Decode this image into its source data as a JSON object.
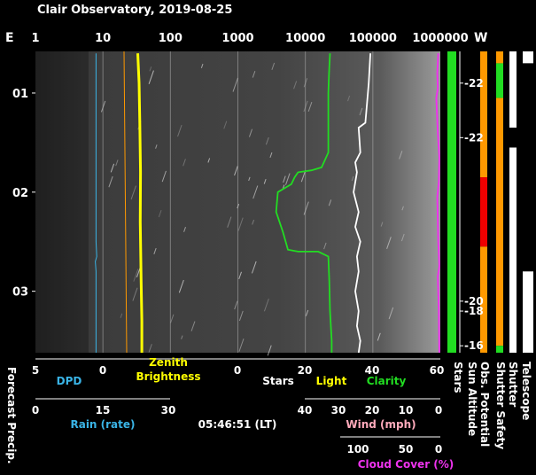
{
  "title": "Clair Observatory, 2019-08-25",
  "time_readout": "05:46:51 (LT)",
  "colors": {
    "dpd": "#3ab4e6",
    "rain": "#3ab4e6",
    "zenith": "#ffff00",
    "stars": "#ffffff",
    "light": "#ffff00",
    "clarity": "#22dd22",
    "wind": "#ffaabb",
    "cloud": "#ee33ee",
    "forecast": "#ffffff"
  },
  "chart_data": {
    "type": "line",
    "top_axis": {
      "left_label": "E",
      "right_label": "W",
      "scale": "log",
      "ticks": [
        "1",
        "10",
        "100",
        "1000",
        "10000",
        "100000",
        "1000000"
      ]
    },
    "y_axis": {
      "ticks": [
        "01",
        "02",
        "03"
      ],
      "hours": [
        1,
        2,
        3
      ],
      "range_hours": [
        0.58,
        3.62
      ]
    },
    "bottom_axes": {
      "dpd": {
        "label": "DPD",
        "ticks": [
          "5",
          "0"
        ]
      },
      "zenith_brightness": {
        "label_line1": "Zenith",
        "label_line2": "Brightness",
        "ticks": [
          "0",
          "20",
          "40",
          "60"
        ]
      },
      "stars_light_clarity": {
        "labels": [
          "Stars",
          "Light",
          "Clarity"
        ]
      },
      "rain": {
        "label": "Rain (rate)",
        "ticks": [
          "0",
          "15",
          "30"
        ]
      },
      "wind": {
        "label": "Wind (mph)",
        "ticks": [
          "40",
          "30",
          "20",
          "10",
          "0"
        ]
      },
      "cloud_cover": {
        "label": "Cloud Cover (%)",
        "ticks": [
          "100",
          "50",
          "0"
        ]
      }
    },
    "side_labels": {
      "left": "Forecast Precip.",
      "columns": [
        "Stars",
        "Sun Altitude",
        "Obs. Potential",
        "Shutter Safety",
        "Shutter",
        "Telescope"
      ]
    },
    "sun_altitude": {
      "labels": [
        "-22",
        "-22",
        "-20",
        "-18",
        "-16"
      ],
      "hours": [
        0.9,
        1.45,
        3.1,
        3.2,
        3.55
      ]
    },
    "series": [
      {
        "key": "dpd",
        "x": [
          0.5,
          0.5,
          0.5,
          0.45,
          0.55,
          0.5,
          0.5,
          0.5
        ],
        "hours": [
          0.6,
          1.5,
          2.5,
          2.65,
          2.7,
          2.8,
          3.3,
          3.62
        ]
      },
      {
        "key": "zenith",
        "x": [
          26.0,
          27.0,
          27.5,
          28.0,
          27.8,
          28.5,
          29.0,
          29.0
        ],
        "hours": [
          0.6,
          0.9,
          1.3,
          1.8,
          2.3,
          2.9,
          3.3,
          3.62
        ]
      },
      {
        "key": "clarity",
        "x": [
          27.5,
          27.2,
          27.0,
          27.0,
          25.0,
          22.0,
          18.0,
          17.0,
          16.0,
          12.0,
          11.5,
          13.5,
          15.0,
          18.0,
          24.0,
          27.0,
          27.3,
          27.5,
          28.0,
          28.0
        ],
        "hours": [
          0.6,
          0.8,
          1.0,
          1.6,
          1.75,
          1.78,
          1.8,
          1.85,
          1.92,
          2.0,
          2.2,
          2.4,
          2.58,
          2.6,
          2.6,
          2.65,
          2.9,
          3.2,
          3.5,
          3.62
        ]
      },
      {
        "key": "stars",
        "x": [
          39.5,
          39.0,
          38.5,
          38.0,
          36.0,
          36.5,
          35.0,
          35.5,
          34.5,
          36.0,
          35.0,
          36.5,
          35.5,
          36.0,
          35.0,
          36.0,
          35.5,
          36.5,
          36.0
        ],
        "hours": [
          0.6,
          0.9,
          1.1,
          1.3,
          1.35,
          1.6,
          1.7,
          1.8,
          2.0,
          2.2,
          2.35,
          2.5,
          2.65,
          2.8,
          3.0,
          3.2,
          3.35,
          3.5,
          3.62
        ]
      },
      {
        "key": "cloud",
        "x": [
          98.0,
          97.0,
          97.5,
          96.0,
          97.5,
          99.0,
          98.5,
          97.0,
          98.0,
          99.0,
          97.5,
          98.5,
          99.0
        ],
        "hours": [
          0.6,
          0.8,
          0.95,
          1.05,
          1.4,
          1.65,
          1.9,
          2.05,
          2.5,
          2.75,
          2.85,
          3.2,
          3.62
        ]
      }
    ],
    "status_columns": {
      "stars": {
        "segments": [
          {
            "from": 0.58,
            "to": 3.62,
            "color": "#22dd22"
          }
        ]
      },
      "obs_potential": {
        "segments": [
          {
            "from": 0.58,
            "to": 1.85,
            "color": "#ff9900"
          },
          {
            "from": 1.85,
            "to": 2.55,
            "color": "#ee0000"
          },
          {
            "from": 2.55,
            "to": 3.62,
            "color": "#ff9900"
          }
        ]
      },
      "shutter_safety": {
        "segments": [
          {
            "from": 0.58,
            "to": 0.7,
            "color": "#ff9900"
          },
          {
            "from": 0.7,
            "to": 1.05,
            "color": "#22dd22"
          },
          {
            "from": 1.05,
            "to": 3.55,
            "color": "#ff9900"
          },
          {
            "from": 3.55,
            "to": 3.62,
            "color": "#22dd22"
          }
        ]
      },
      "shutter": {
        "segments": [
          {
            "from": 0.58,
            "to": 1.35,
            "color": "#ffffff"
          },
          {
            "from": 1.35,
            "to": 1.55,
            "color": "#000000"
          },
          {
            "from": 1.55,
            "to": 3.62,
            "color": "#ffffff"
          }
        ]
      },
      "telescope": {
        "segments": [
          {
            "from": 0.58,
            "to": 0.7,
            "color": "#ffffff"
          },
          {
            "from": 0.7,
            "to": 2.8,
            "color": "#000000"
          },
          {
            "from": 2.8,
            "to": 3.62,
            "color": "#ffffff"
          }
        ]
      }
    }
  }
}
